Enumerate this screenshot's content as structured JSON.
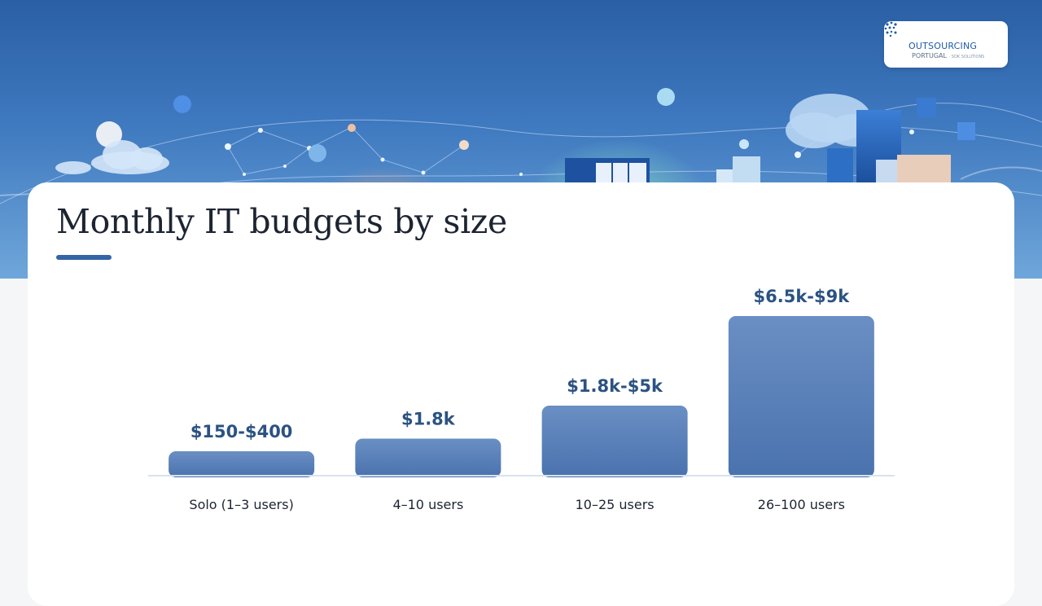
{
  "logo": {
    "line1": "OUTSOURCING",
    "line2": "PORTUGAL",
    "line2_sub": "· SOK SOLUTIONS"
  },
  "page": {
    "title": "Monthly IT budgets by size"
  },
  "colors": {
    "bar": "#4a72ad",
    "bar_top": "#6a8fc4",
    "accent": "#3465a4",
    "value_label": "#2b5282"
  },
  "chart_data": {
    "type": "bar",
    "title": "Monthly IT budgets by size",
    "categories": [
      "Solo (1–3 users)",
      "4–10 users",
      "10–25 users",
      "26–100 users"
    ],
    "value_labels": [
      "$150-$400",
      "$1.8k",
      "$1.8k-$5k",
      "$6.5k-$9k"
    ],
    "ranges": [
      [
        150,
        400
      ],
      [
        1800,
        1800
      ],
      [
        1800,
        5000
      ],
      [
        6500,
        9000
      ]
    ],
    "values": [
      275,
      1800,
      3400,
      7750
    ],
    "xlabel": "",
    "ylabel": "",
    "ylim": [
      0,
      7750
    ],
    "grid": false,
    "legend": "none"
  }
}
